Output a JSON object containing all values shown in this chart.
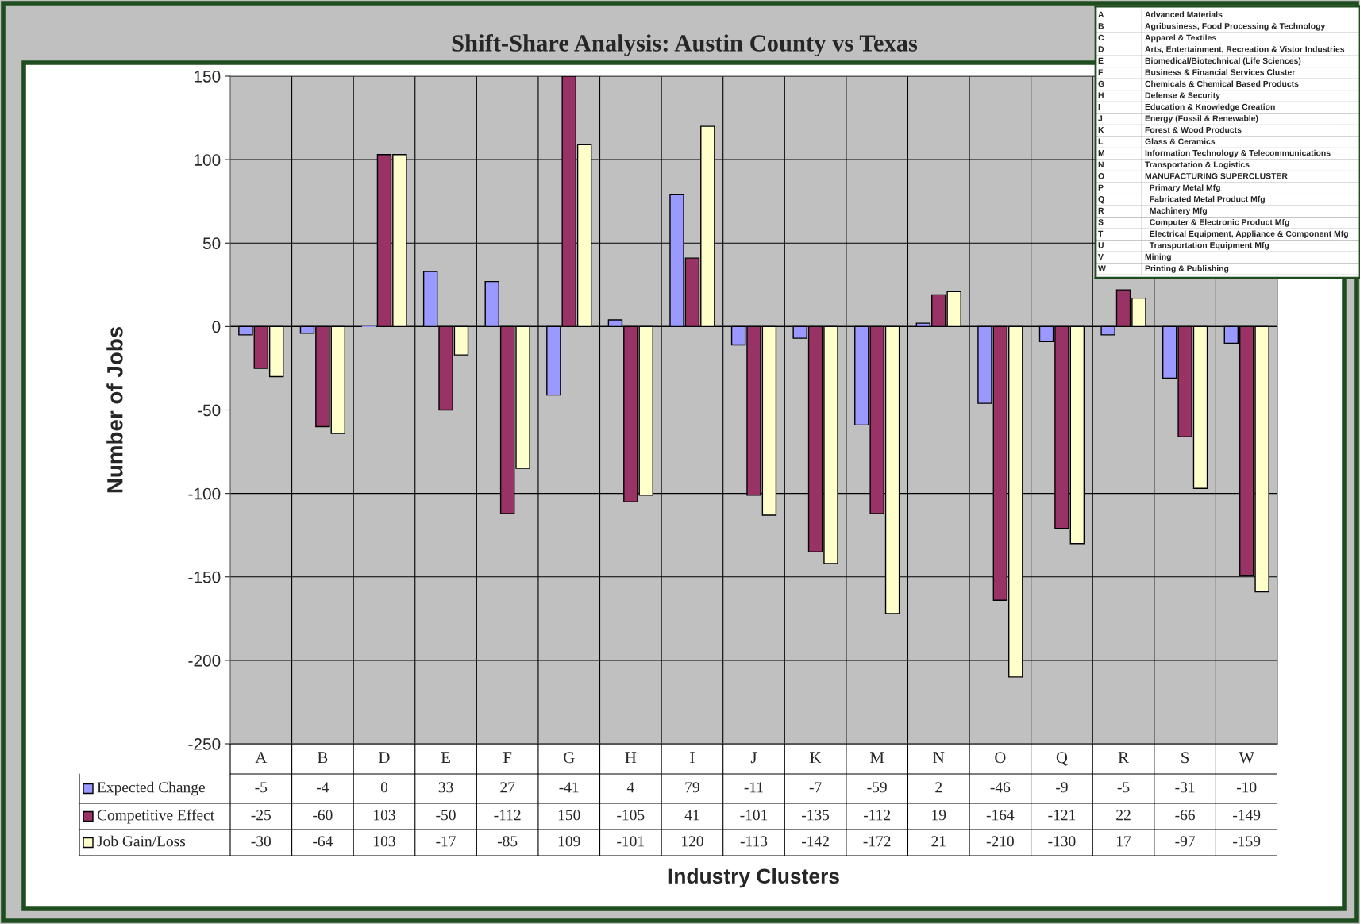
{
  "chart_data": {
    "type": "bar",
    "title": "Shift-Share Analysis: Austin County vs Texas",
    "xlabel": "Industry Clusters",
    "ylabel": "Number of Jobs",
    "categories": [
      "A",
      "B",
      "D",
      "E",
      "F",
      "G",
      "H",
      "I",
      "J",
      "K",
      "M",
      "N",
      "O",
      "Q",
      "R",
      "S",
      "W"
    ],
    "series": [
      {
        "name": "Expected Change",
        "color": "#9999ff",
        "values": [
          -5,
          -4,
          0,
          33,
          27,
          -41,
          4,
          79,
          -11,
          -7,
          -59,
          2,
          -46,
          -9,
          -5,
          -31,
          -10
        ]
      },
      {
        "name": "Competitive Effect",
        "color": "#993366",
        "values": [
          -25,
          -60,
          103,
          -50,
          -112,
          150,
          -105,
          41,
          -101,
          -135,
          -112,
          19,
          -164,
          -121,
          22,
          -66,
          -149
        ]
      },
      {
        "name": "Job Gain/Loss",
        "color": "#ffffcc",
        "values": [
          -30,
          -64,
          103,
          -17,
          -85,
          109,
          -101,
          120,
          -113,
          -142,
          -172,
          21,
          -210,
          -130,
          17,
          -97,
          -159
        ]
      }
    ],
    "ylim": [
      -250,
      150
    ],
    "yticks": [
      -250,
      -200,
      -150,
      -100,
      -50,
      0,
      50,
      100,
      150
    ],
    "grid": true,
    "data_labels": true,
    "legend": "bottom",
    "annotations": [
      "A Advanced Materials",
      "B Agribusiness, Food Processing & Technology",
      "C Apparel & Textiles",
      "D Arts, Entertainment, Recreation & Vistor Industries",
      "E Biomedical/Biotechnical (Life Sciences)",
      "F Business & Financial Services Cluster",
      "G Chemicals & Chemical Based Products",
      "H Defense & Security",
      "I Education & Knowledge Creation",
      "J Energy (Fossil & Renewable)",
      "K Forest & Wood Products",
      "L Glass & Ceramics",
      "M Information Technology & Telecommunications",
      "N Transportation & Logistics",
      "O MANUFACTURING SUPERCLUSTER",
      "P   Primary Metal Mfg",
      "Q   Fabricated Metal Product Mfg",
      "R   Machinery Mfg",
      "S   Computer & Electronic Product Mfg",
      "T   Electrical Equipment, Appliance & Component Mfg",
      "U   Transportation Equipment Mfg",
      "V Mining",
      "W Printing & Publishing"
    ]
  }
}
